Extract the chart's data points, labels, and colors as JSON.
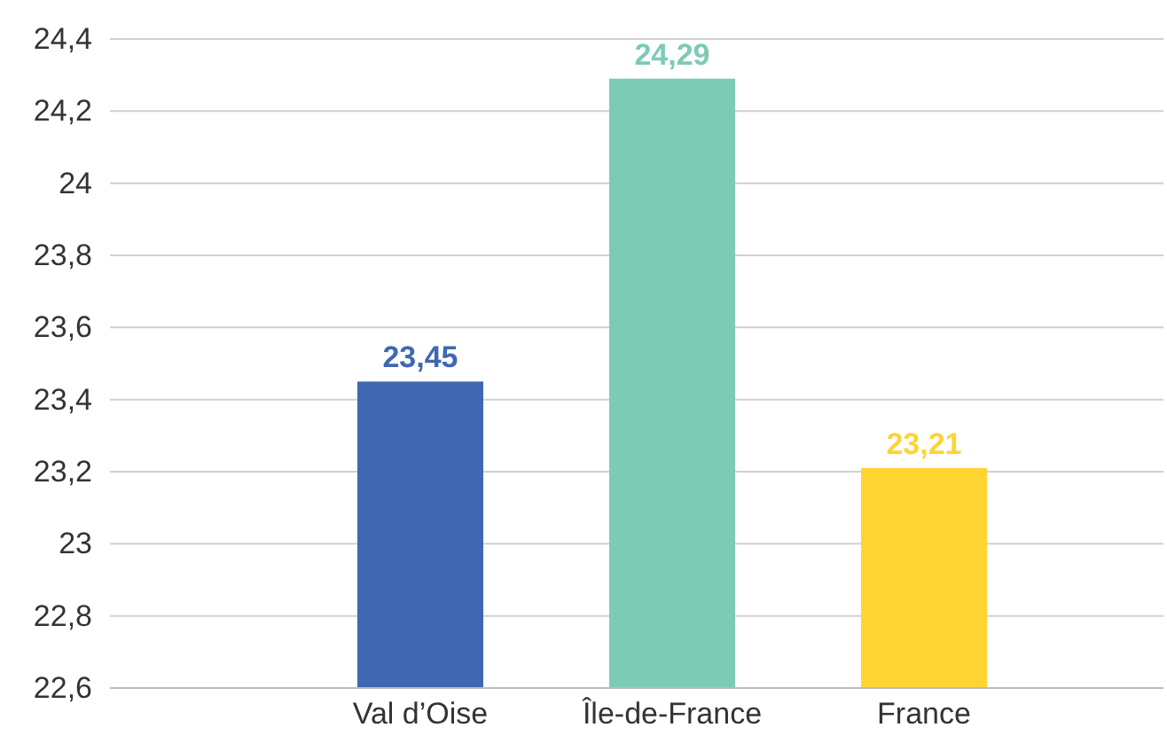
{
  "chart_data": {
    "type": "bar",
    "categories": [
      "Val d’Oise",
      "Île-de-France",
      "France"
    ],
    "values": [
      23.45,
      24.29,
      23.21
    ],
    "colors": [
      "#4068b1",
      "#7dcbb5",
      "#fed433"
    ],
    "value_labels": [
      "23,45",
      "24,29",
      "23,21"
    ],
    "ylim": [
      22.6,
      24.4
    ],
    "yticks": [
      {
        "value": 22.6,
        "label": "22,6"
      },
      {
        "value": 22.8,
        "label": "22,8"
      },
      {
        "value": 23,
        "label": "23"
      },
      {
        "value": 23.2,
        "label": "23,2"
      },
      {
        "value": 23.4,
        "label": "23,4"
      },
      {
        "value": 23.6,
        "label": "23,6"
      },
      {
        "value": 23.8,
        "label": "23,8"
      },
      {
        "value": 24,
        "label": "24"
      },
      {
        "value": 24.2,
        "label": "24,2"
      },
      {
        "value": 24.4,
        "label": "24,4"
      }
    ],
    "grid": "y"
  }
}
